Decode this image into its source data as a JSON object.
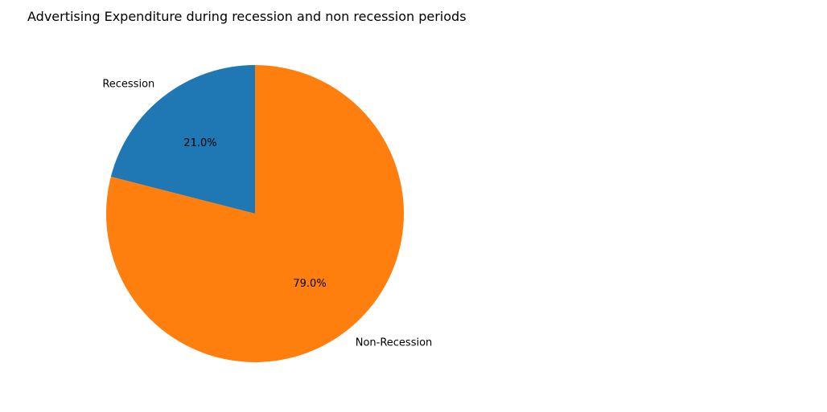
{
  "chart_data": {
    "type": "pie",
    "title": "Advertising Expenditure during recession and non recession periods",
    "categories": [
      "Recession",
      "Non-Recession"
    ],
    "values": [
      21.0,
      79.0
    ],
    "percent_labels": [
      "21.0%",
      "79.0%"
    ],
    "colors": [
      "#1f77b4",
      "#ff7f0e"
    ],
    "start_angle_deg": 90,
    "direction": "counterclockwise"
  }
}
